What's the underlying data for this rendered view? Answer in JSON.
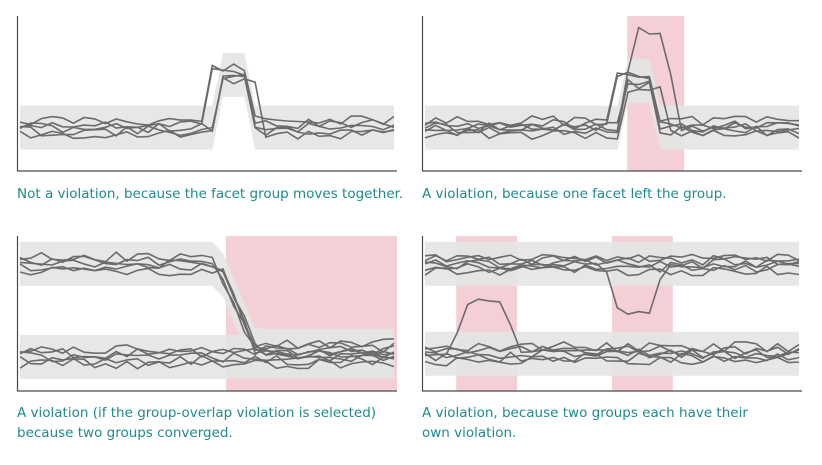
{
  "colors": {
    "line": "#6b6b6b",
    "band": "#e4e4e4",
    "highlight": "#f4cfd6",
    "axis": "#4a4a4a",
    "caption": "#1f8a8f"
  },
  "panels": [
    {
      "caption": "Not a violation, because the facet group moves together.",
      "groups": [
        {
          "base": 0.72,
          "spikes": [
            {
              "start": 0.52,
              "end": 0.62,
              "level": 0.38
            }
          ]
        }
      ],
      "outliers": [],
      "highlights": []
    },
    {
      "caption": "A violation, because one facet left the group.",
      "groups": [
        {
          "base": 0.72,
          "spikes": [
            {
              "start": 0.52,
              "end": 0.62,
              "level": 0.42
            }
          ]
        }
      ],
      "outliers": [
        {
          "base": 0.72,
          "start": 0.52,
          "end": 0.68,
          "level": 0.1
        }
      ],
      "highlights": [
        [
          0.54,
          0.69
        ]
      ]
    },
    {
      "caption": "A violation (if the group-overlap violation is selected)\nbecause two groups converged.",
      "groups": [
        {
          "base": 0.18,
          "drop": {
            "start": 0.53,
            "end": 0.63,
            "to": 0.74
          }
        },
        {
          "base": 0.78
        }
      ],
      "outliers": [],
      "highlights": [
        [
          0.55,
          1.0
        ]
      ]
    },
    {
      "caption": "A violation, because two groups each have their\nown violation.",
      "groups": [
        {
          "base": 0.18
        },
        {
          "base": 0.76
        }
      ],
      "outliers": [
        {
          "base": 0.76,
          "start": 0.07,
          "end": 0.25,
          "level": 0.4
        },
        {
          "base": 0.18,
          "start": 0.48,
          "end": 0.64,
          "level": 0.5
        }
      ],
      "highlights": [
        [
          0.09,
          0.25
        ],
        [
          0.5,
          0.66
        ]
      ]
    }
  ]
}
